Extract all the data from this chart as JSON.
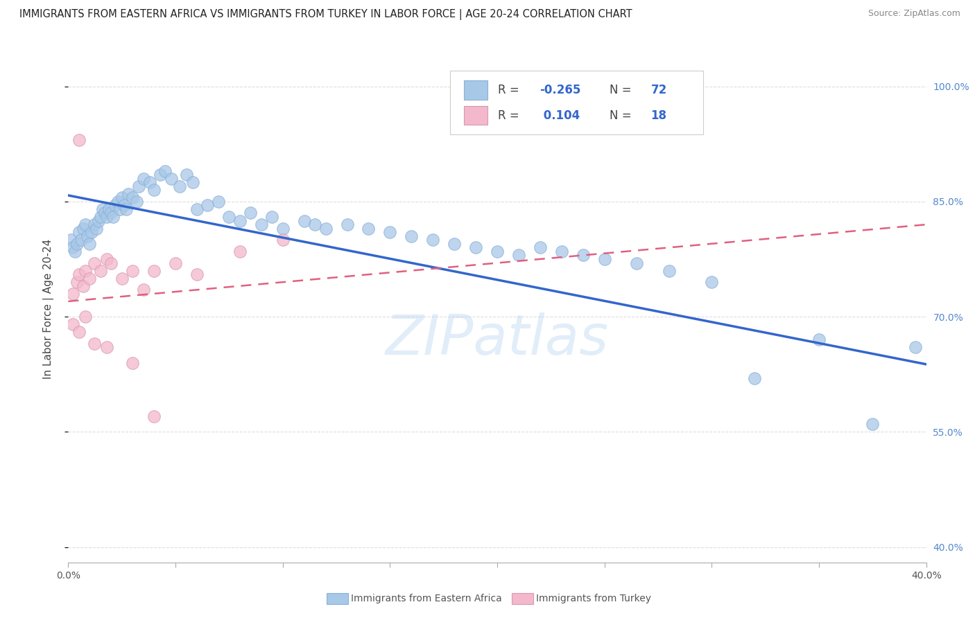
{
  "title": "IMMIGRANTS FROM EASTERN AFRICA VS IMMIGRANTS FROM TURKEY IN LABOR FORCE | AGE 20-24 CORRELATION CHART",
  "source": "Source: ZipAtlas.com",
  "ylabel": "In Labor Force | Age 20-24",
  "legend_label1": "Immigrants from Eastern Africa",
  "legend_label2": "Immigrants from Turkey",
  "blue_color": "#a8c8e8",
  "pink_color": "#f4b8cc",
  "blue_line_color": "#3366cc",
  "pink_line_color": "#e06080",
  "watermark": "ZIPatlas",
  "xmin": 0.0,
  "xmax": 0.4,
  "ymin": 0.38,
  "ymax": 1.04,
  "yticks": [
    1.0,
    0.85,
    0.7,
    0.55,
    0.4
  ],
  "ytick_labels": [
    "100.0%",
    "85.0%",
    "70.0%",
    "55.0%",
    "40.0%"
  ],
  "blue_scatter_x": [
    0.001,
    0.002,
    0.003,
    0.004,
    0.005,
    0.006,
    0.007,
    0.008,
    0.009,
    0.01,
    0.011,
    0.012,
    0.013,
    0.014,
    0.015,
    0.016,
    0.017,
    0.018,
    0.019,
    0.02,
    0.021,
    0.022,
    0.023,
    0.024,
    0.025,
    0.026,
    0.027,
    0.028,
    0.03,
    0.032,
    0.033,
    0.035,
    0.038,
    0.04,
    0.043,
    0.045,
    0.048,
    0.052,
    0.055,
    0.058,
    0.06,
    0.065,
    0.07,
    0.075,
    0.08,
    0.085,
    0.09,
    0.095,
    0.1,
    0.11,
    0.115,
    0.12,
    0.13,
    0.14,
    0.15,
    0.16,
    0.17,
    0.18,
    0.19,
    0.2,
    0.21,
    0.22,
    0.23,
    0.24,
    0.25,
    0.265,
    0.28,
    0.3,
    0.32,
    0.35,
    0.375,
    0.395
  ],
  "blue_scatter_y": [
    0.8,
    0.79,
    0.785,
    0.795,
    0.81,
    0.8,
    0.815,
    0.82,
    0.805,
    0.795,
    0.81,
    0.82,
    0.815,
    0.825,
    0.83,
    0.84,
    0.835,
    0.83,
    0.84,
    0.835,
    0.83,
    0.845,
    0.85,
    0.84,
    0.855,
    0.845,
    0.84,
    0.86,
    0.855,
    0.85,
    0.87,
    0.88,
    0.875,
    0.865,
    0.885,
    0.89,
    0.88,
    0.87,
    0.885,
    0.875,
    0.84,
    0.845,
    0.85,
    0.83,
    0.825,
    0.835,
    0.82,
    0.83,
    0.815,
    0.825,
    0.82,
    0.815,
    0.82,
    0.815,
    0.81,
    0.805,
    0.8,
    0.795,
    0.79,
    0.785,
    0.78,
    0.79,
    0.785,
    0.78,
    0.775,
    0.77,
    0.76,
    0.745,
    0.62,
    0.67,
    0.56,
    0.66
  ],
  "pink_scatter_x": [
    0.002,
    0.004,
    0.005,
    0.007,
    0.008,
    0.01,
    0.012,
    0.015,
    0.018,
    0.02,
    0.025,
    0.03,
    0.035,
    0.04,
    0.05,
    0.06,
    0.08,
    0.1
  ],
  "pink_scatter_y": [
    0.73,
    0.745,
    0.755,
    0.74,
    0.76,
    0.75,
    0.77,
    0.76,
    0.775,
    0.77,
    0.75,
    0.76,
    0.735,
    0.76,
    0.77,
    0.755,
    0.785,
    0.8
  ],
  "pink_outlier_x": [
    0.005
  ],
  "pink_outlier_y": [
    0.93
  ],
  "pink_low_x": [
    0.002,
    0.005,
    0.008,
    0.012,
    0.018,
    0.03,
    0.04
  ],
  "pink_low_y": [
    0.69,
    0.68,
    0.7,
    0.665,
    0.66,
    0.64,
    0.57
  ],
  "blue_trendline_x": [
    0.0,
    0.4
  ],
  "blue_trendline_y": [
    0.858,
    0.638
  ],
  "pink_trendline_x": [
    0.0,
    0.4
  ],
  "pink_trendline_y": [
    0.72,
    0.82
  ],
  "grid_color": "#dddddd",
  "bg_color": "#ffffff"
}
